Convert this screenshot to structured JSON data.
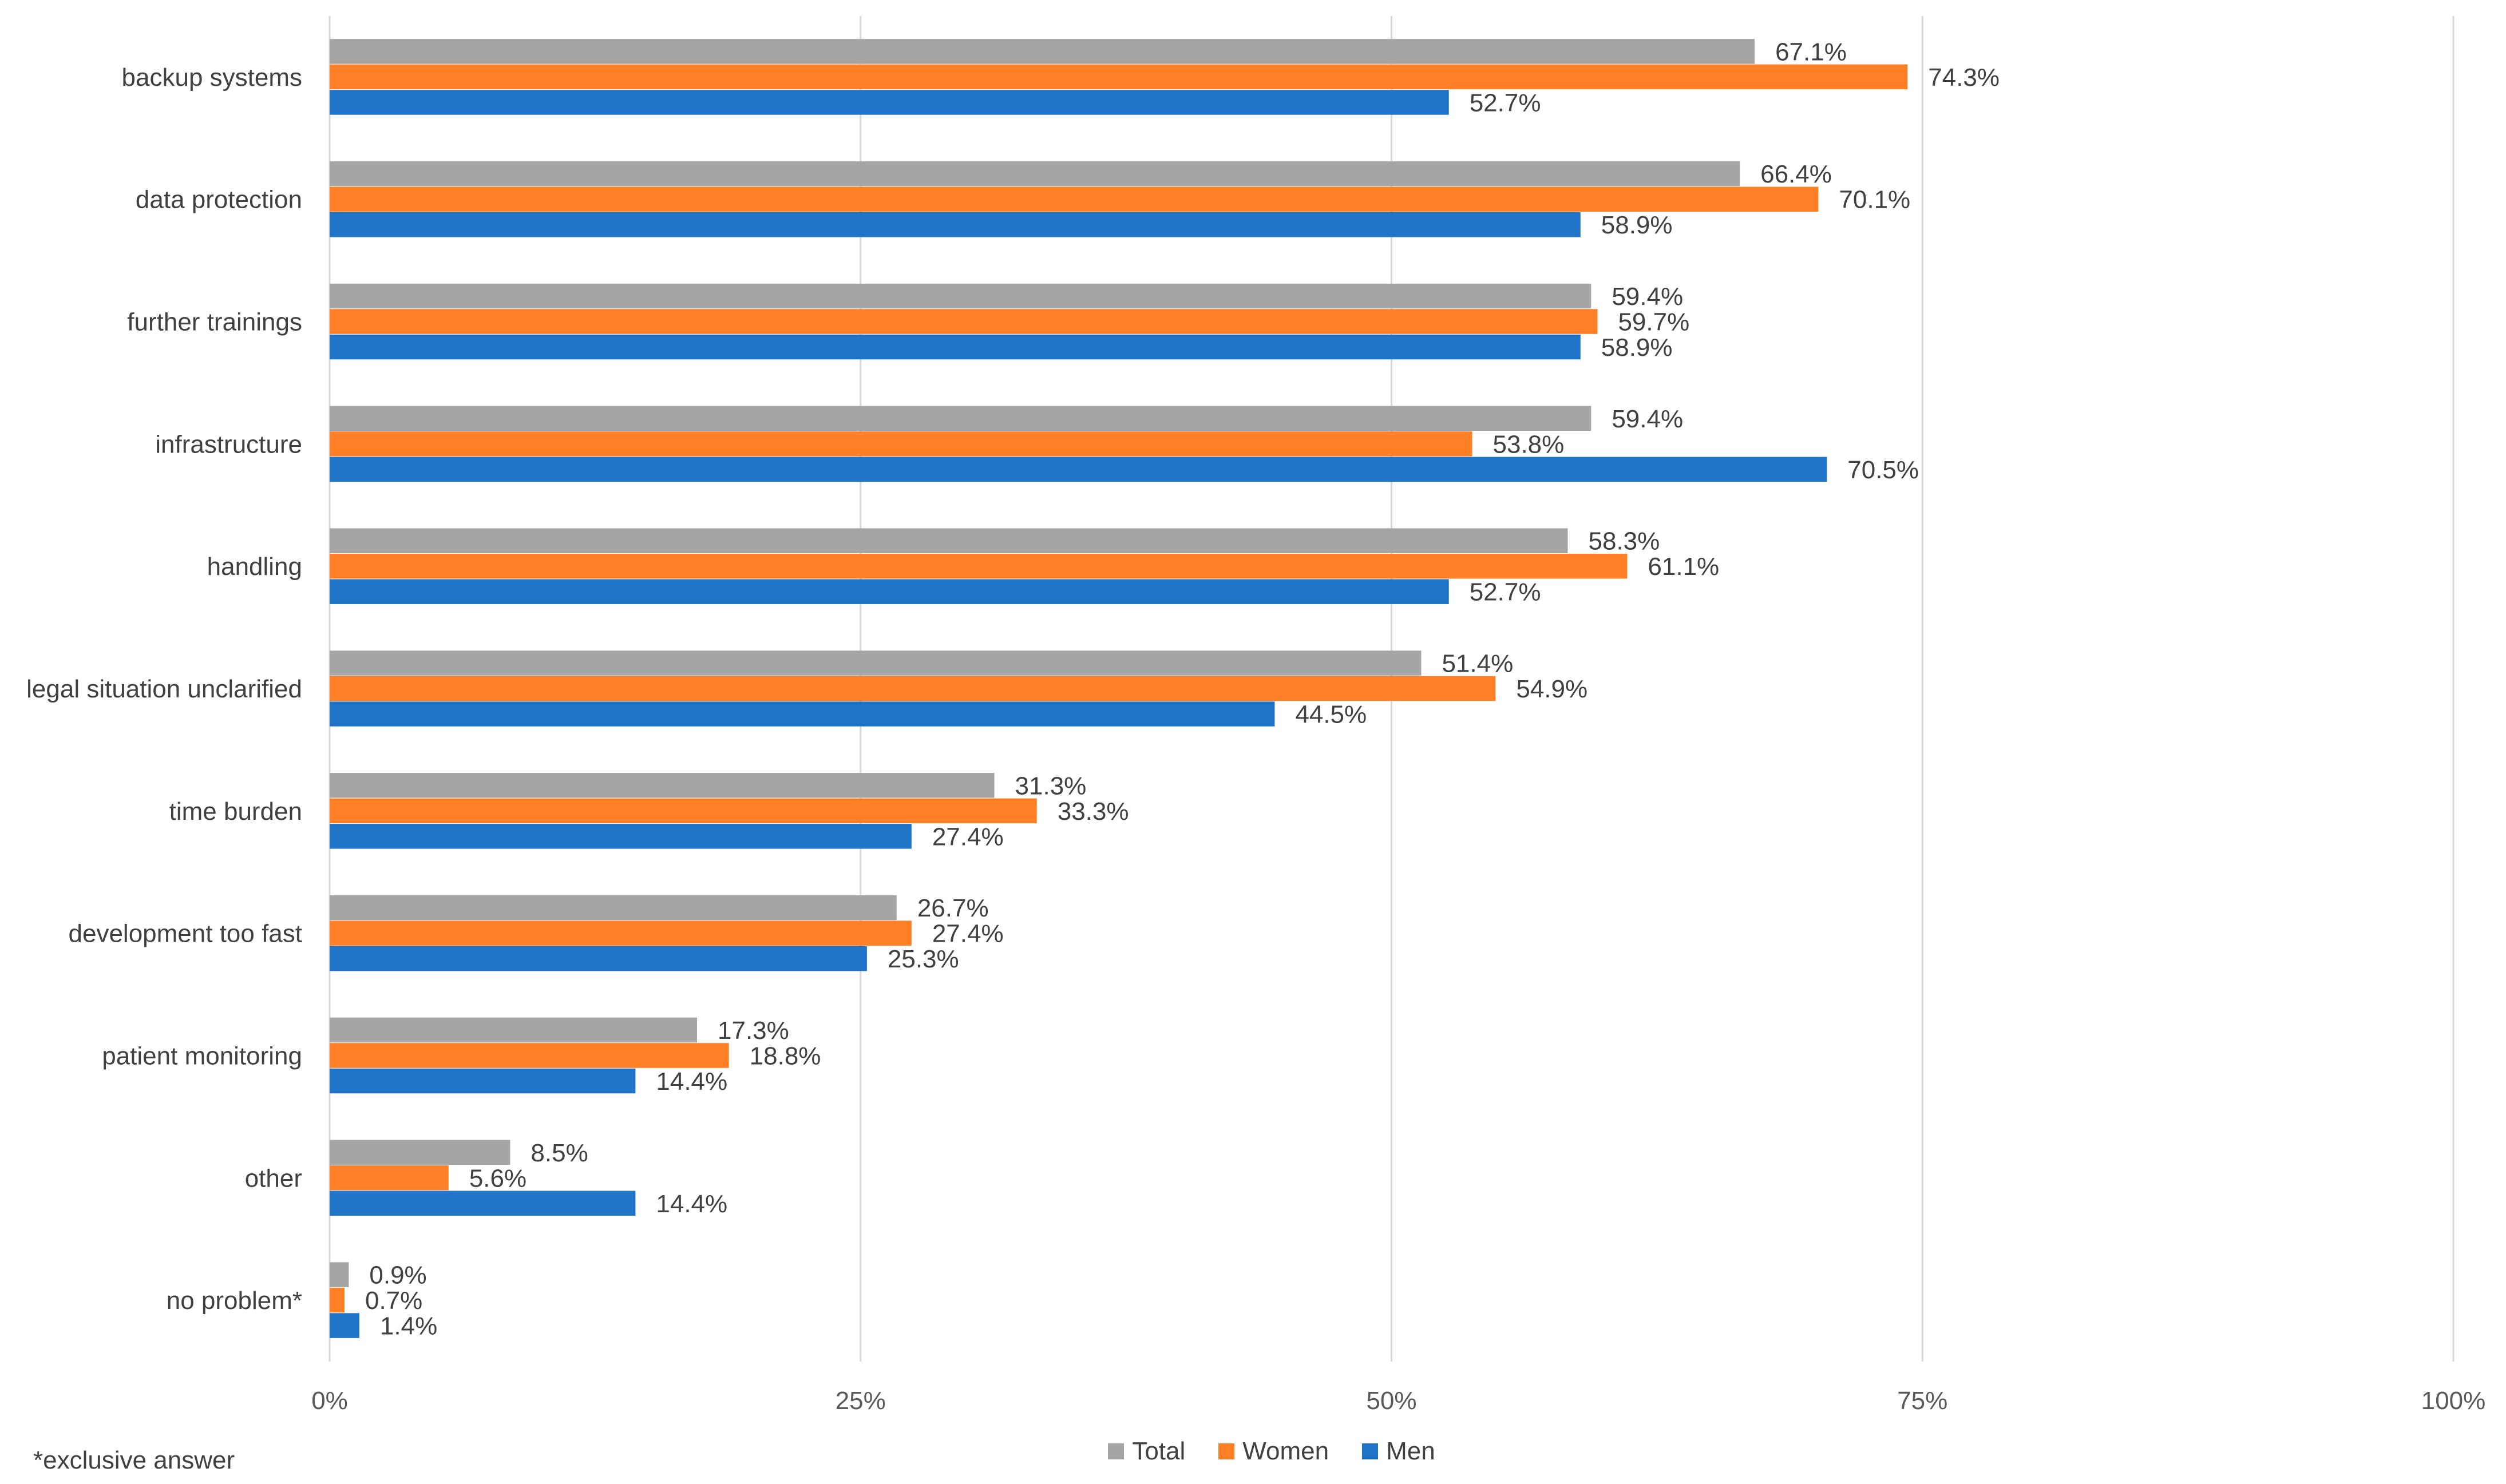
{
  "chart_data": {
    "type": "bar",
    "orientation": "horizontal",
    "title": "",
    "xlabel": "",
    "ylabel": "",
    "xlim": [
      0,
      100
    ],
    "x_ticks": [
      "0%",
      "25%",
      "50%",
      "75%",
      "100%"
    ],
    "categories": [
      "backup systems",
      "data protection",
      "further trainings",
      "infrastructure",
      "handling",
      "legal situation unclarified",
      "time burden",
      "development too fast",
      "patient monitoring",
      "other",
      "no problem*"
    ],
    "series": [
      {
        "name": "Total",
        "color": "#A5A5A5",
        "values": [
          67.1,
          66.4,
          59.4,
          59.4,
          58.3,
          51.4,
          31.3,
          26.7,
          17.3,
          8.5,
          0.9
        ],
        "labels": [
          "67.1%",
          "66.4%",
          "59.4%",
          "59.4%",
          "58.3%",
          "51.4%",
          "31.3%",
          "26.7%",
          "17.3%",
          "8.5%",
          "0.9%"
        ]
      },
      {
        "name": "Women",
        "color": "#FF7F27",
        "values": [
          74.3,
          70.1,
          59.7,
          53.8,
          61.1,
          54.9,
          33.3,
          27.4,
          18.8,
          5.6,
          0.7
        ],
        "labels": [
          "74.3%",
          "70.1%",
          "59.7%",
          "53.8%",
          "61.1%",
          "54.9%",
          "33.3%",
          "27.4%",
          "18.8%",
          "5.6%",
          "0.7%"
        ]
      },
      {
        "name": "Men",
        "color": "#1F74C8",
        "values": [
          52.7,
          58.9,
          58.9,
          70.5,
          52.7,
          44.5,
          27.4,
          25.3,
          14.4,
          14.4,
          1.4
        ],
        "labels": [
          "52.7%",
          "58.9%",
          "58.9%",
          "70.5%",
          "52.7%",
          "44.5%",
          "27.4%",
          "25.3%",
          "14.4%",
          "14.4%",
          "1.4%"
        ]
      }
    ],
    "grid": true,
    "legend_position": "bottom"
  },
  "footnote": "*exclusive answer",
  "legend": [
    {
      "label": "Total",
      "color": "#A5A5A5"
    },
    {
      "label": "Women",
      "color": "#FF7F27"
    },
    {
      "label": "Men",
      "color": "#1F74C8"
    }
  ]
}
